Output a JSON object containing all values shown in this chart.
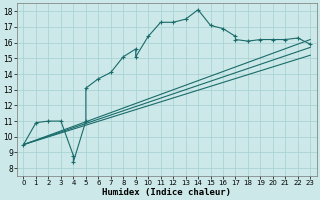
{
  "xlabel": "Humidex (Indice chaleur)",
  "xlim": [
    -0.5,
    23.5
  ],
  "ylim": [
    7.5,
    18.5
  ],
  "xticks": [
    0,
    1,
    2,
    3,
    4,
    5,
    6,
    7,
    8,
    9,
    10,
    11,
    12,
    13,
    14,
    15,
    16,
    17,
    18,
    19,
    20,
    21,
    22,
    23
  ],
  "yticks": [
    8,
    9,
    10,
    11,
    12,
    13,
    14,
    15,
    16,
    17,
    18
  ],
  "background_color": "#cce8e8",
  "grid_color": "#aad4d4",
  "line_color": "#1a6b6b",
  "curve1_x": [
    0,
    1,
    2,
    3,
    4,
    4,
    5,
    5,
    6,
    7,
    8,
    9,
    9,
    10,
    11,
    12,
    13,
    14,
    15,
    16,
    17,
    17,
    18,
    19,
    20,
    21,
    22,
    23
  ],
  "curve1_y": [
    9.5,
    10.9,
    11.0,
    11.0,
    8.8,
    8.4,
    11.0,
    13.1,
    13.7,
    14.1,
    15.1,
    15.6,
    15.1,
    16.4,
    17.3,
    17.3,
    17.5,
    18.1,
    17.1,
    16.9,
    16.4,
    16.2,
    16.1,
    16.2,
    16.2,
    16.2,
    16.3,
    15.9
  ],
  "line1_x": [
    0,
    23
  ],
  "line1_y": [
    9.5,
    16.2
  ],
  "line2_x": [
    0,
    23
  ],
  "line2_y": [
    9.5,
    15.7
  ],
  "line3_x": [
    0,
    23
  ],
  "line3_y": [
    9.5,
    15.2
  ]
}
